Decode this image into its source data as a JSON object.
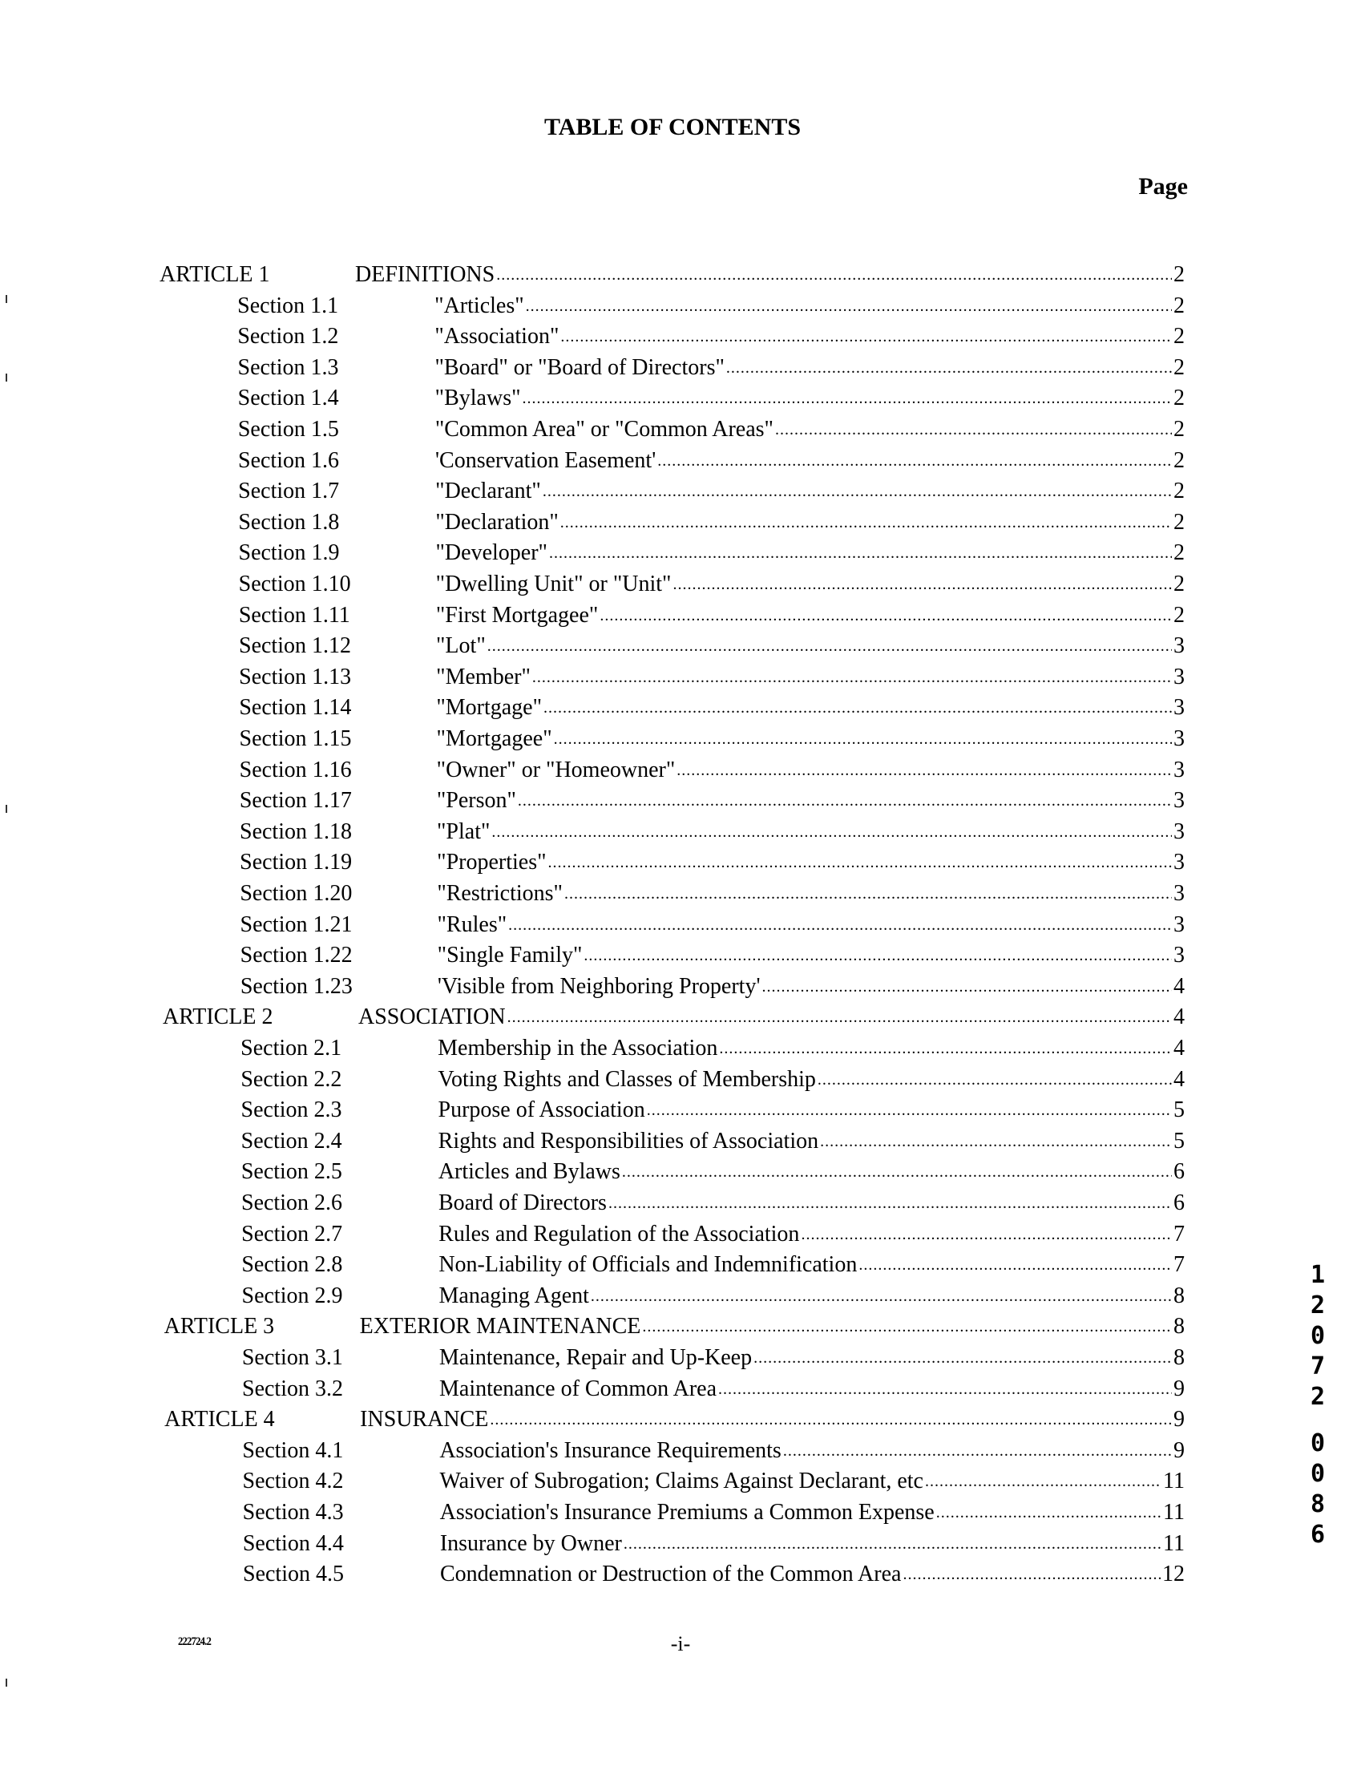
{
  "header": {
    "title": "TABLE OF CONTENTS",
    "page_label": "Page"
  },
  "toc": [
    {
      "type": "article",
      "label": "ARTICLE 1",
      "title": "DEFINITIONS",
      "page": "2"
    },
    {
      "type": "section",
      "label": "Section 1.1",
      "title": "\"Articles\"",
      "page": "2"
    },
    {
      "type": "section",
      "label": "Section 1.2",
      "title": "\"Association\"",
      "page": "2"
    },
    {
      "type": "section",
      "label": "Section 1.3",
      "title": "\"Board\" or \"Board of Directors\"",
      "page": "2"
    },
    {
      "type": "section",
      "label": "Section 1.4",
      "title": "\"Bylaws\"",
      "page": "2"
    },
    {
      "type": "section",
      "label": "Section 1.5",
      "title": "\"Common Area\" or \"Common Areas\"",
      "page": "2"
    },
    {
      "type": "section",
      "label": "Section 1.6",
      "title": "'Conservation Easement'",
      "page": "2"
    },
    {
      "type": "section",
      "label": "Section 1.7",
      "title": "\"Declarant\"",
      "page": "2"
    },
    {
      "type": "section",
      "label": "Section 1.8",
      "title": "\"Declaration\"",
      "page": "2"
    },
    {
      "type": "section",
      "label": "Section 1.9",
      "title": "\"Developer\"",
      "page": "2"
    },
    {
      "type": "section",
      "label": "Section 1.10",
      "title": "\"Dwelling Unit\" or \"Unit\"",
      "page": "2"
    },
    {
      "type": "section",
      "label": "Section 1.11",
      "title": "\"First Mortgagee\"",
      "page": "2"
    },
    {
      "type": "section",
      "label": "Section 1.12",
      "title": "\"Lot\"",
      "page": "3"
    },
    {
      "type": "section",
      "label": "Section 1.13",
      "title": "\"Member\"",
      "page": "3"
    },
    {
      "type": "section",
      "label": "Section 1.14",
      "title": "\"Mortgage\"",
      "page": "3"
    },
    {
      "type": "section",
      "label": "Section 1.15",
      "title": "\"Mortgagee\"",
      "page": "3"
    },
    {
      "type": "section",
      "label": "Section 1.16",
      "title": "\"Owner\" or \"Homeowner\"",
      "page": "3"
    },
    {
      "type": "section",
      "label": "Section 1.17",
      "title": "\"Person\"",
      "page": "3"
    },
    {
      "type": "section",
      "label": "Section 1.18",
      "title": "\"Plat\"",
      "page": "3"
    },
    {
      "type": "section",
      "label": "Section 1.19",
      "title": "\"Properties\"",
      "page": "3"
    },
    {
      "type": "section",
      "label": "Section 1.20",
      "title": "\"Restrictions\"",
      "page": "3"
    },
    {
      "type": "section",
      "label": "Section 1.21",
      "title": "\"Rules\"",
      "page": "3"
    },
    {
      "type": "section",
      "label": "Section 1.22",
      "title": "\"Single Family\"",
      "page": "3"
    },
    {
      "type": "section",
      "label": "Section 1.23",
      "title": "'Visible from Neighboring Property'",
      "page": "4"
    },
    {
      "type": "article",
      "label": "ARTICLE 2",
      "title": "ASSOCIATION",
      "page": "4"
    },
    {
      "type": "section",
      "label": "Section 2.1",
      "title": "Membership in the Association",
      "page": "4"
    },
    {
      "type": "section",
      "label": "Section 2.2",
      "title": "Voting Rights and Classes of Membership",
      "page": "4"
    },
    {
      "type": "section",
      "label": "Section 2.3",
      "title": "Purpose of Association",
      "page": "5"
    },
    {
      "type": "section",
      "label": "Section 2.4",
      "title": "Rights and Responsibilities of Association",
      "page": "5"
    },
    {
      "type": "section",
      "label": "Section 2.5",
      "title": "Articles and Bylaws",
      "page": "6"
    },
    {
      "type": "section",
      "label": "Section 2.6",
      "title": "Board of Directors",
      "page": "6"
    },
    {
      "type": "section",
      "label": "Section 2.7",
      "title": "Rules and Regulation of the Association",
      "page": "7"
    },
    {
      "type": "section",
      "label": "Section 2.8",
      "title": "Non-Liability of Officials and Indemnification",
      "page": "7"
    },
    {
      "type": "section",
      "label": "Section 2.9",
      "title": "Managing Agent",
      "page": "8"
    },
    {
      "type": "article",
      "label": "ARTICLE 3",
      "title": "EXTERIOR MAINTENANCE",
      "page": "8"
    },
    {
      "type": "section",
      "label": "Section 3.1",
      "title": "Maintenance, Repair and Up-Keep",
      "page": "8"
    },
    {
      "type": "section",
      "label": "Section 3.2",
      "title": "Maintenance of Common Area",
      "page": "9"
    },
    {
      "type": "article",
      "label": "ARTICLE 4",
      "title": "INSURANCE",
      "page": "9"
    },
    {
      "type": "section",
      "label": "Section 4.1",
      "title": "Association's Insurance Requirements",
      "page": "9"
    },
    {
      "type": "section",
      "label": "Section 4.2",
      "title": "Waiver of Subrogation; Claims Against Declarant, etc",
      "page": "11"
    },
    {
      "type": "section",
      "label": "Section 4.3",
      "title": "Association's Insurance Premiums a Common Expense",
      "page": "11"
    },
    {
      "type": "section",
      "label": "Section 4.4",
      "title": "Insurance by Owner",
      "page": "11"
    },
    {
      "type": "section",
      "label": "Section 4.5",
      "title": "Condemnation or Destruction of the Common Area",
      "page": "12"
    }
  ],
  "footer": {
    "doc_id": "222724.2",
    "page_number": "-i-"
  },
  "margin_stamp": [
    "1",
    "2",
    "0",
    "7",
    "2",
    "",
    "0",
    "0",
    "8",
    "6"
  ]
}
